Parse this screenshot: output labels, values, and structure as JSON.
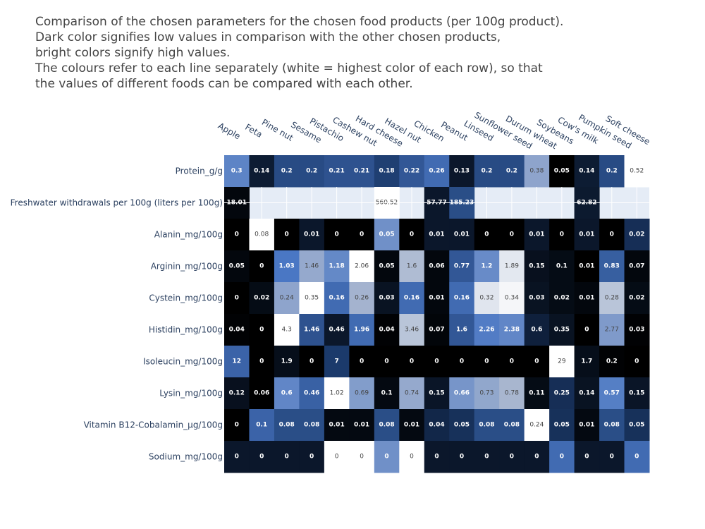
{
  "title_lines": [
    "Comparison of the chosen parameters for the chosen food products (per 100g product).",
    "Dark color signifies low values in comparison with the other chosen products,",
    "bright colors signify high values.",
    "The colours refer to each line separately (white = highest color of each row), so that",
    "the values of different foods can be compared with each other."
  ],
  "chart_data": {
    "type": "heatmap",
    "title": "Comparison of the chosen parameters for the chosen food products (per 100g product). Dark color signifies low values in comparison with the other chosen products, bright colors signify high values. The colours refer to each line separately (white = highest color of each row), so that the values of different foods can be compared with each other.",
    "x": [
      "Apple",
      "Feta",
      "Pine nut",
      "Sesame",
      "Pistachio",
      "Cashew nut",
      "Hard cheese",
      "Hazel nut",
      "Chicken",
      "Peanut",
      "Linseed",
      "Sunflower seed",
      "Durum wheat",
      "Soybeans",
      "Cow's milk",
      "Pumpkin seed",
      "Soft cheese"
    ],
    "y": [
      "Protein_g/g",
      "Freshwater withdrawals per 100g (liters per 100g)",
      "Alanin_mg/100g",
      "Arginin_mg/100g",
      "Cystein_mg/100g",
      "Histidin_mg/100g",
      "Isoleucin_mg/100g",
      "Lysin_mg/100g",
      "Vitamin B12-Cobalamin_µg/100g",
      "Sodium_mg/100g"
    ],
    "z": [
      [
        0.3,
        0.14,
        0.2,
        0.2,
        0.21,
        0.21,
        0.18,
        0.22,
        0.26,
        0.13,
        0.2,
        0.2,
        0.38,
        0.05,
        0.14,
        0.2,
        0.52
      ],
      [
        18.01,
        null,
        null,
        null,
        null,
        null,
        560.52,
        null,
        57.77,
        185.23,
        null,
        null,
        null,
        null,
        62.82,
        null,
        null
      ],
      [
        0,
        0.08,
        0,
        0.01,
        0,
        0,
        0.05,
        0,
        0.01,
        0.01,
        0,
        0,
        0.01,
        0,
        0.01,
        0,
        0.02
      ],
      [
        0.05,
        0,
        1.03,
        1.46,
        1.18,
        2.06,
        0.05,
        1.6,
        0.06,
        0.77,
        1.2,
        1.89,
        0.15,
        0.1,
        0.01,
        0.83,
        0.07
      ],
      [
        0,
        0.02,
        0.24,
        0.35,
        0.16,
        0.26,
        0.03,
        0.16,
        0.01,
        0.16,
        0.32,
        0.34,
        0.03,
        0.02,
        0.01,
        0.28,
        0.02
      ],
      [
        0.04,
        0,
        4.3,
        1.46,
        0.46,
        1.96,
        0.04,
        3.46,
        0.07,
        1.6,
        2.26,
        2.38,
        0.6,
        0.35,
        0,
        2.77,
        0.03
      ],
      [
        12,
        0,
        1.9,
        0,
        7,
        0,
        0,
        0,
        0,
        0,
        0,
        0,
        0,
        29,
        1.7,
        0.2,
        0
      ],
      [
        0.12,
        0.06,
        0.6,
        0.46,
        1.02,
        0.69,
        0.1,
        0.74,
        0.15,
        0.66,
        0.73,
        0.78,
        0.11,
        0.25,
        0.14,
        0.57,
        0.15
      ],
      [
        0,
        0.1,
        0.08,
        0.08,
        0.01,
        0.01,
        0.08,
        0.01,
        0.04,
        0.05,
        0.08,
        0.08,
        0.24,
        0.05,
        0.01,
        0.08,
        0.05
      ],
      [
        0,
        0,
        0,
        0,
        0,
        0,
        0,
        0,
        0,
        0,
        0,
        0,
        0,
        0,
        0,
        0,
        0
      ]
    ],
    "color_levels": [
      [
        0.55,
        0.12,
        0.32,
        0.32,
        0.35,
        0.35,
        0.27,
        0.37,
        0.45,
        0.1,
        0.32,
        0.32,
        0.68,
        0.0,
        0.12,
        0.32,
        1.0
      ],
      [
        0.03,
        null,
        null,
        null,
        null,
        null,
        1.0,
        null,
        0.1,
        0.33,
        null,
        null,
        null,
        null,
        0.11,
        null,
        null
      ],
      [
        0.0,
        1.0,
        0.0,
        0.1,
        0.0,
        0.0,
        0.6,
        0.0,
        0.1,
        0.1,
        0.0,
        0.0,
        0.1,
        0.0,
        0.1,
        0.0,
        0.2
      ],
      [
        0.03,
        0.0,
        0.5,
        0.7,
        0.57,
        1.0,
        0.03,
        0.77,
        0.03,
        0.37,
        0.58,
        0.92,
        0.07,
        0.05,
        0.0,
        0.4,
        0.03
      ],
      [
        0.0,
        0.05,
        0.68,
        1.0,
        0.45,
        0.74,
        0.08,
        0.45,
        0.03,
        0.45,
        0.91,
        0.97,
        0.08,
        0.05,
        0.03,
        0.8,
        0.05
      ],
      [
        0.01,
        0.0,
        1.0,
        0.35,
        0.1,
        0.45,
        0.01,
        0.8,
        0.02,
        0.37,
        0.52,
        0.56,
        0.14,
        0.08,
        0.0,
        0.64,
        0.01
      ],
      [
        0.42,
        0.0,
        0.06,
        0.0,
        0.25,
        0.0,
        0.0,
        0.0,
        0.0,
        0.0,
        0.0,
        0.0,
        0.0,
        1.0,
        0.06,
        0.01,
        0.0
      ],
      [
        0.07,
        0.0,
        0.56,
        0.41,
        1.0,
        0.65,
        0.04,
        0.7,
        0.09,
        0.62,
        0.69,
        0.75,
        0.05,
        0.2,
        0.08,
        0.53,
        0.09
      ],
      [
        0.0,
        0.42,
        0.33,
        0.33,
        0.04,
        0.04,
        0.33,
        0.04,
        0.17,
        0.21,
        0.33,
        0.33,
        1.0,
        0.21,
        0.04,
        0.33,
        0.21
      ],
      [
        0.1,
        0.1,
        0.1,
        0.1,
        1.0,
        1.0,
        0.6,
        1.0,
        0.1,
        0.1,
        0.1,
        0.1,
        0.1,
        0.45,
        0.1,
        0.1,
        0.45
      ]
    ],
    "colorscale": [
      [
        0.0,
        "#000000"
      ],
      [
        0.25,
        "#1b3a6b"
      ],
      [
        0.5,
        "#4a77c4"
      ],
      [
        0.75,
        "#a8b6cf"
      ],
      [
        1.0,
        "#ffffff"
      ]
    ],
    "missing_color": "#e5ecf6",
    "label_colors": {
      "dark": "#ffffff",
      "light": "#444444"
    },
    "xlabel": "",
    "ylabel": ""
  }
}
